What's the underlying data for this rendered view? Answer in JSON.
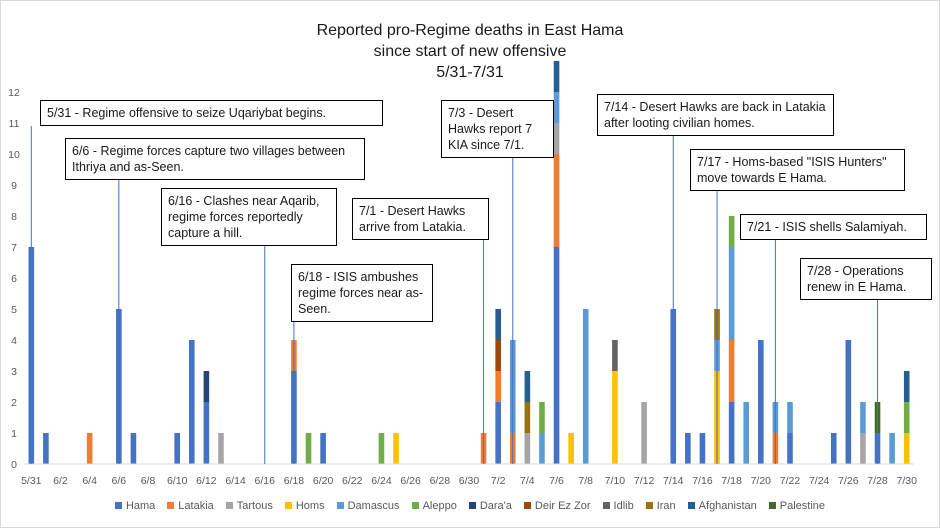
{
  "chart_data": {
    "type": "bar",
    "stacked": true,
    "title": [
      "Reported pro-Regime deaths in East Hama",
      "since start of new offensive",
      "5/31-7/31"
    ],
    "ylim": [
      0,
      12
    ],
    "yticks": [
      0,
      1,
      2,
      3,
      4,
      5,
      6,
      7,
      8,
      9,
      10,
      11,
      12
    ],
    "grid": false,
    "legend_position": "bottom",
    "days": [
      "5/31",
      "6/1",
      "6/2",
      "6/3",
      "6/4",
      "6/5",
      "6/6",
      "6/7",
      "6/8",
      "6/9",
      "6/10",
      "6/11",
      "6/12",
      "6/13",
      "6/14",
      "6/15",
      "6/16",
      "6/17",
      "6/18",
      "6/19",
      "6/20",
      "6/21",
      "6/22",
      "6/23",
      "6/24",
      "6/25",
      "6/26",
      "6/27",
      "6/28",
      "6/29",
      "6/30",
      "7/1",
      "7/2",
      "7/3",
      "7/4",
      "7/5",
      "7/6",
      "7/7",
      "7/8",
      "7/9",
      "7/10",
      "7/11",
      "7/12",
      "7/13",
      "7/14",
      "7/15",
      "7/16",
      "7/17",
      "7/18",
      "7/19",
      "7/20",
      "7/21",
      "7/22",
      "7/23",
      "7/24",
      "7/25",
      "7/26",
      "7/27",
      "7/28",
      "7/29",
      "7/30"
    ],
    "tick_labels": [
      "5/31",
      "6/2",
      "6/4",
      "6/6",
      "6/8",
      "6/10",
      "6/12",
      "6/14",
      "6/16",
      "6/18",
      "6/20",
      "6/22",
      "6/24",
      "6/26",
      "6/28",
      "6/30",
      "7/2",
      "7/4",
      "7/6",
      "7/8",
      "7/10",
      "7/12",
      "7/14",
      "7/16",
      "7/18",
      "7/20",
      "7/22",
      "7/24",
      "7/26",
      "7/28",
      "7/30"
    ],
    "series": [
      {
        "name": "Hama",
        "color": "#4472c4",
        "values": {
          "5/31": 7,
          "6/1": 1,
          "6/6": 5,
          "6/7": 1,
          "6/10": 1,
          "6/11": 4,
          "6/12": 2,
          "6/18": 3,
          "6/20": 1,
          "7/2": 2,
          "7/6": 7,
          "7/14": 5,
          "7/15": 1,
          "7/16": 1,
          "7/18": 2,
          "7/20": 4,
          "7/22": 1,
          "7/25": 1,
          "7/26": 4,
          "7/28": 1
        }
      },
      {
        "name": "Latakia",
        "color": "#ed7d31",
        "values": {
          "6/4": 1,
          "6/18": 1,
          "7/1": 1,
          "7/2": 1,
          "7/3": 1,
          "7/6": 3,
          "7/18": 2,
          "7/21": 1
        }
      },
      {
        "name": "Tartous",
        "color": "#a5a5a5",
        "values": {
          "6/13": 1,
          "7/4": 1,
          "7/6": 1,
          "7/12": 2,
          "7/27": 1
        }
      },
      {
        "name": "Homs",
        "color": "#ffc000",
        "values": {
          "6/25": 1,
          "7/7": 1,
          "7/10": 3,
          "7/17": 3,
          "7/30": 1
        }
      },
      {
        "name": "Damascus",
        "color": "#5b9bd5",
        "values": {
          "7/3": 3,
          "7/5": 1,
          "7/6": 1,
          "7/8": 5,
          "7/17": 1,
          "7/18": 3,
          "7/19": 2,
          "7/21": 1,
          "7/22": 1,
          "7/27": 1,
          "7/29": 1
        }
      },
      {
        "name": "Aleppo",
        "color": "#70ad47",
        "values": {
          "6/19": 1,
          "6/24": 1,
          "7/5": 1,
          "7/18": 1,
          "7/30": 1
        }
      },
      {
        "name": "Dara'a",
        "color": "#264478",
        "values": {
          "6/12": 1
        }
      },
      {
        "name": "Deir Ez Zor",
        "color": "#9e480e",
        "values": {
          "7/2": 1
        }
      },
      {
        "name": "Idlib",
        "color": "#636363",
        "values": {
          "7/10": 1
        }
      },
      {
        "name": "Iran",
        "color": "#997300",
        "values": {
          "7/4": 1,
          "7/17": 1
        }
      },
      {
        "name": "Afghanistan",
        "color": "#255e91",
        "values": {
          "7/2": 1,
          "7/4": 1,
          "7/6": 1,
          "7/30": 1
        }
      },
      {
        "name": "Palestine",
        "color": "#43682b",
        "values": {
          "7/28": 1
        }
      }
    ],
    "annotations": [
      {
        "text": "5/31 - Regime offensive to seize Uqariybat begins.",
        "day": "5/31"
      },
      {
        "text": "6/6 - Regime forces capture two villages between Ithriya and as-Seen.",
        "day": "6/6"
      },
      {
        "text": "6/16 - Clashes near Aqarib, regime forces reportedly capture a hill.",
        "day": "6/16"
      },
      {
        "text": "6/18 - ISIS ambushes regime forces near as-Seen.",
        "day": "6/18"
      },
      {
        "text": "7/1 - Desert Hawks arrive from Latakia.",
        "day": "7/1"
      },
      {
        "text": "7/3 - Desert Hawks report 7 KIA since 7/1.",
        "day": "7/3"
      },
      {
        "text": "7/14 - Desert Hawks are back in Latakia after looting civilian homes.",
        "day": "7/14"
      },
      {
        "text": "7/17 - Homs-based \"ISIS Hunters\" move towards E Hama.",
        "day": "7/17"
      },
      {
        "text": "7/21 - ISIS shells Salamiyah.",
        "day": "7/21"
      },
      {
        "text": "7/28 - Operations renew in E Hama.",
        "day": "7/28"
      }
    ]
  }
}
